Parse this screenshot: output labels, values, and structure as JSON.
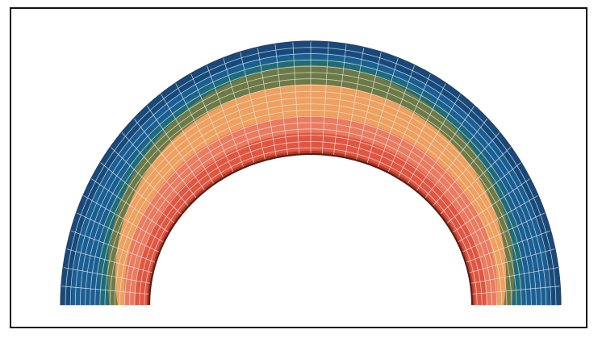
{
  "figure": {
    "type": "annular-mesh-contour",
    "shape": "half-annulus",
    "mesh": {
      "radial_divisions": 18,
      "angular_divisions": 44,
      "line_color": "#dfe6ee"
    },
    "bands": [
      {
        "name": "band-inner-edge",
        "color": "#b23a2a"
      },
      {
        "name": "band-red",
        "color": "#e2553f"
      },
      {
        "name": "band-salmon",
        "color": "#ec7a5d"
      },
      {
        "name": "band-orange",
        "color": "#f0a05c"
      },
      {
        "name": "band-olive",
        "color": "#6e7a45"
      },
      {
        "name": "band-teal",
        "color": "#1f6b78"
      },
      {
        "name": "band-blue",
        "color": "#1a5f93"
      },
      {
        "name": "band-dark-blue",
        "color": "#174a7a"
      }
    ],
    "colors": {
      "frame_border": "#111111",
      "background": "#ffffff",
      "outer_edge": "#2a3f64"
    }
  }
}
